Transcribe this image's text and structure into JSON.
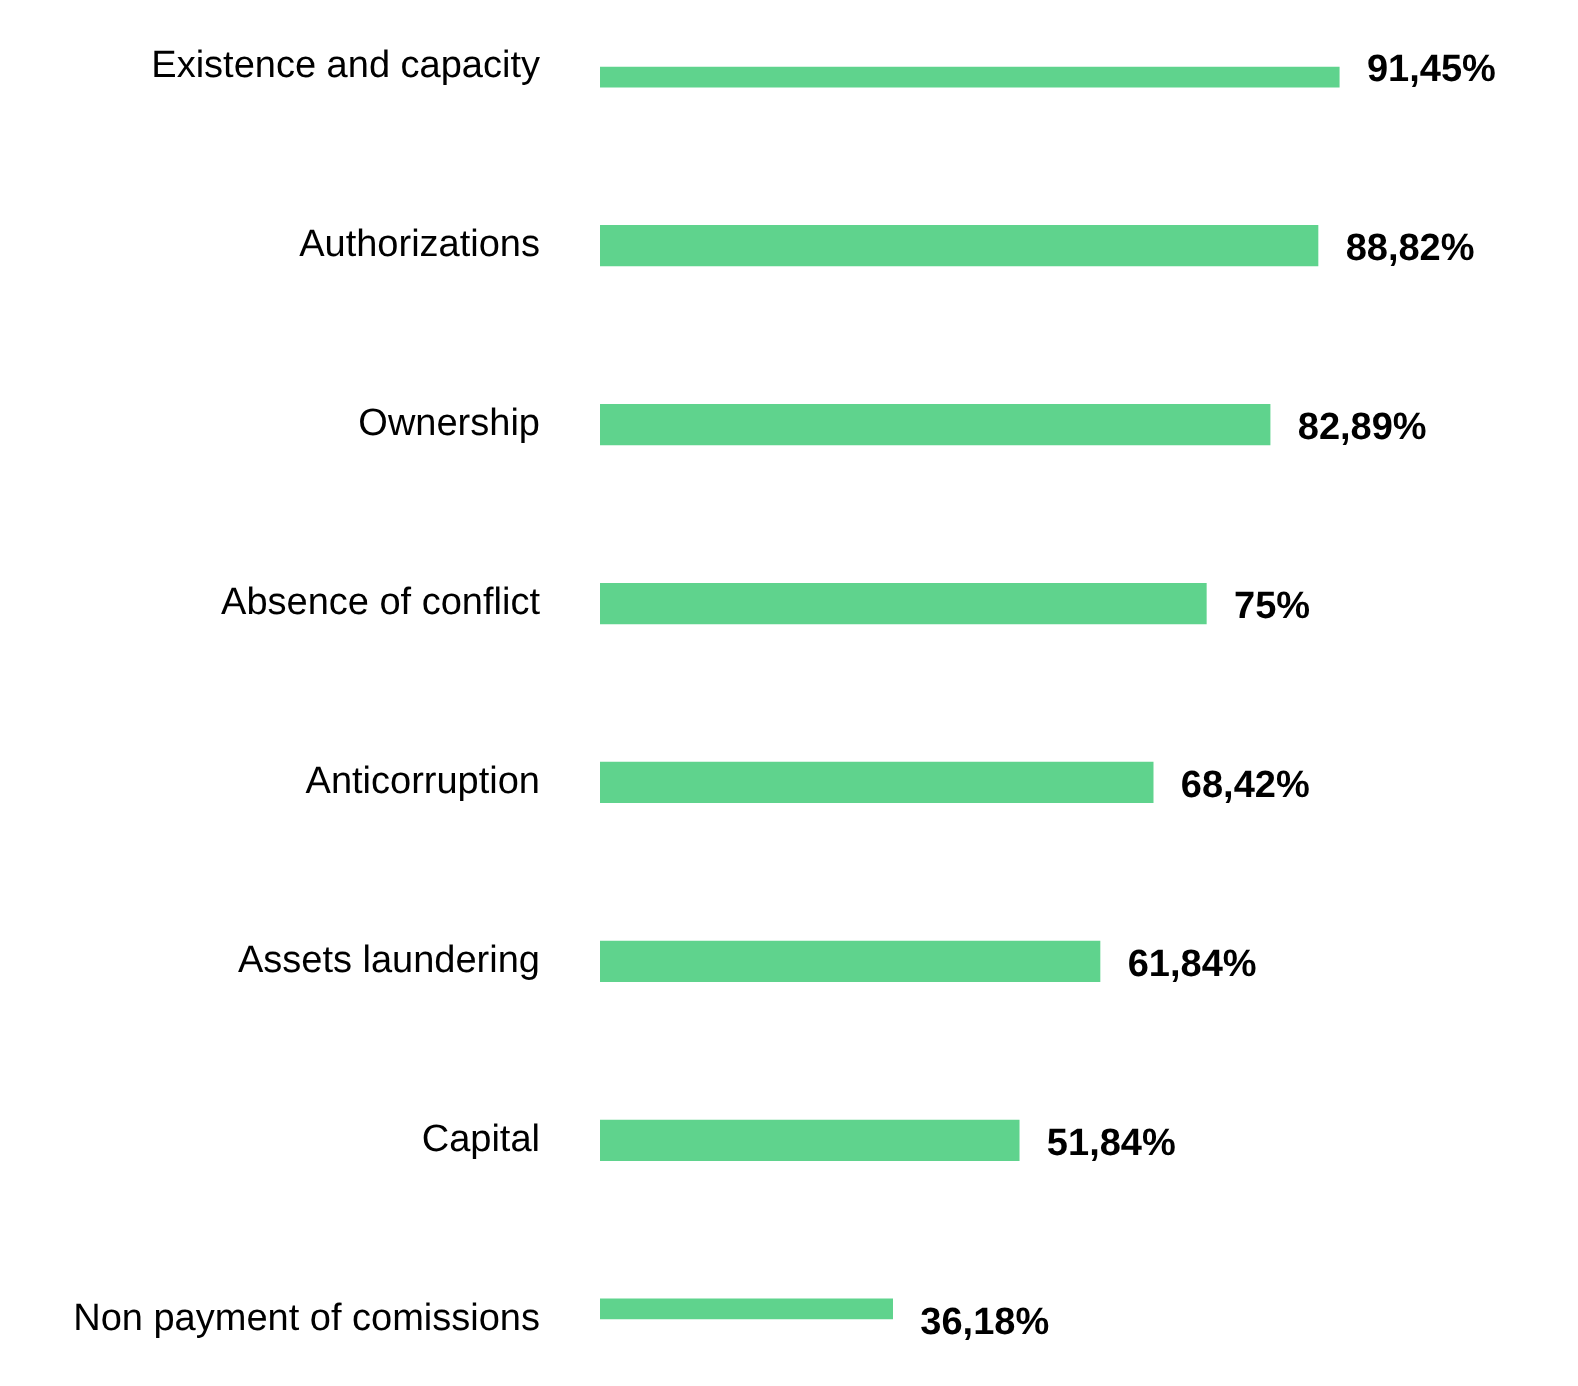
{
  "chart_data": {
    "type": "bar",
    "orientation": "horizontal",
    "categories": [
      "Existence and capacity",
      "Authorizations",
      "Ownership",
      "Absence of conflict",
      "Anticorruption",
      "Assets laundering",
      "Capital",
      "Non payment of comissions"
    ],
    "values": [
      91.45,
      88.82,
      82.89,
      75,
      68.42,
      61.84,
      51.84,
      36.18
    ],
    "value_labels": [
      "91,45%",
      "88,82%",
      "82,89%",
      "75%",
      "68,42%",
      "61,84%",
      "51,84%",
      "36,18%"
    ],
    "color": "#5fd38d",
    "legend": false
  }
}
